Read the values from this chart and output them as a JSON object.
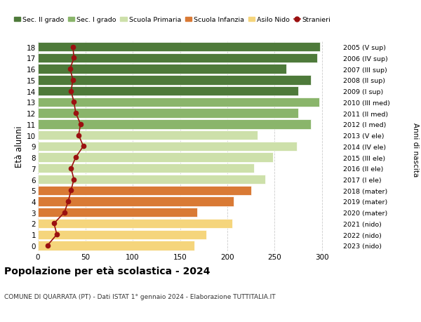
{
  "ages": [
    0,
    1,
    2,
    3,
    4,
    5,
    6,
    7,
    8,
    9,
    10,
    11,
    12,
    13,
    14,
    15,
    16,
    17,
    18
  ],
  "years": [
    "2023 (nido)",
    "2022 (nido)",
    "2021 (nido)",
    "2020 (mater)",
    "2019 (mater)",
    "2018 (mater)",
    "2017 (I ele)",
    "2016 (II ele)",
    "2015 (III ele)",
    "2014 (IV ele)",
    "2013 (V ele)",
    "2012 (I med)",
    "2011 (II med)",
    "2010 (III med)",
    "2009 (I sup)",
    "2008 (II sup)",
    "2007 (III sup)",
    "2006 (IV sup)",
    "2005 (V sup)"
  ],
  "bar_values": [
    165,
    178,
    205,
    168,
    207,
    225,
    240,
    228,
    248,
    273,
    232,
    288,
    275,
    297,
    275,
    288,
    262,
    295,
    298
  ],
  "stranieri": [
    10,
    20,
    17,
    28,
    32,
    35,
    38,
    35,
    40,
    48,
    43,
    45,
    40,
    38,
    35,
    37,
    34,
    38,
    37
  ],
  "bar_colors": [
    "#f5d57c",
    "#f5d57c",
    "#f5d57c",
    "#d97a35",
    "#d97a35",
    "#d97a35",
    "#cde0aa",
    "#cde0aa",
    "#cde0aa",
    "#cde0aa",
    "#cde0aa",
    "#8ab56b",
    "#8ab56b",
    "#8ab56b",
    "#4e7a3a",
    "#4e7a3a",
    "#4e7a3a",
    "#4e7a3a",
    "#4e7a3a"
  ],
  "legend_labels": [
    "Sec. II grado",
    "Sec. I grado",
    "Scuola Primaria",
    "Scuola Infanzia",
    "Asilo Nido",
    "Stranieri"
  ],
  "legend_colors": [
    "#4e7a3a",
    "#8ab56b",
    "#cde0aa",
    "#d97a35",
    "#f5d57c",
    "#9b1010"
  ],
  "ylabel": "Età alunni",
  "right_label": "Anni di nascita",
  "title": "Popolazione per età scolastica - 2024",
  "subtitle": "COMUNE DI QUARRATA (PT) - Dati ISTAT 1° gennaio 2024 - Elaborazione TUTTITALIA.IT",
  "xlim": [
    0,
    320
  ],
  "xticks": [
    0,
    50,
    100,
    150,
    200,
    250,
    300
  ],
  "background_color": "#ffffff",
  "grid_color": "#cccccc"
}
